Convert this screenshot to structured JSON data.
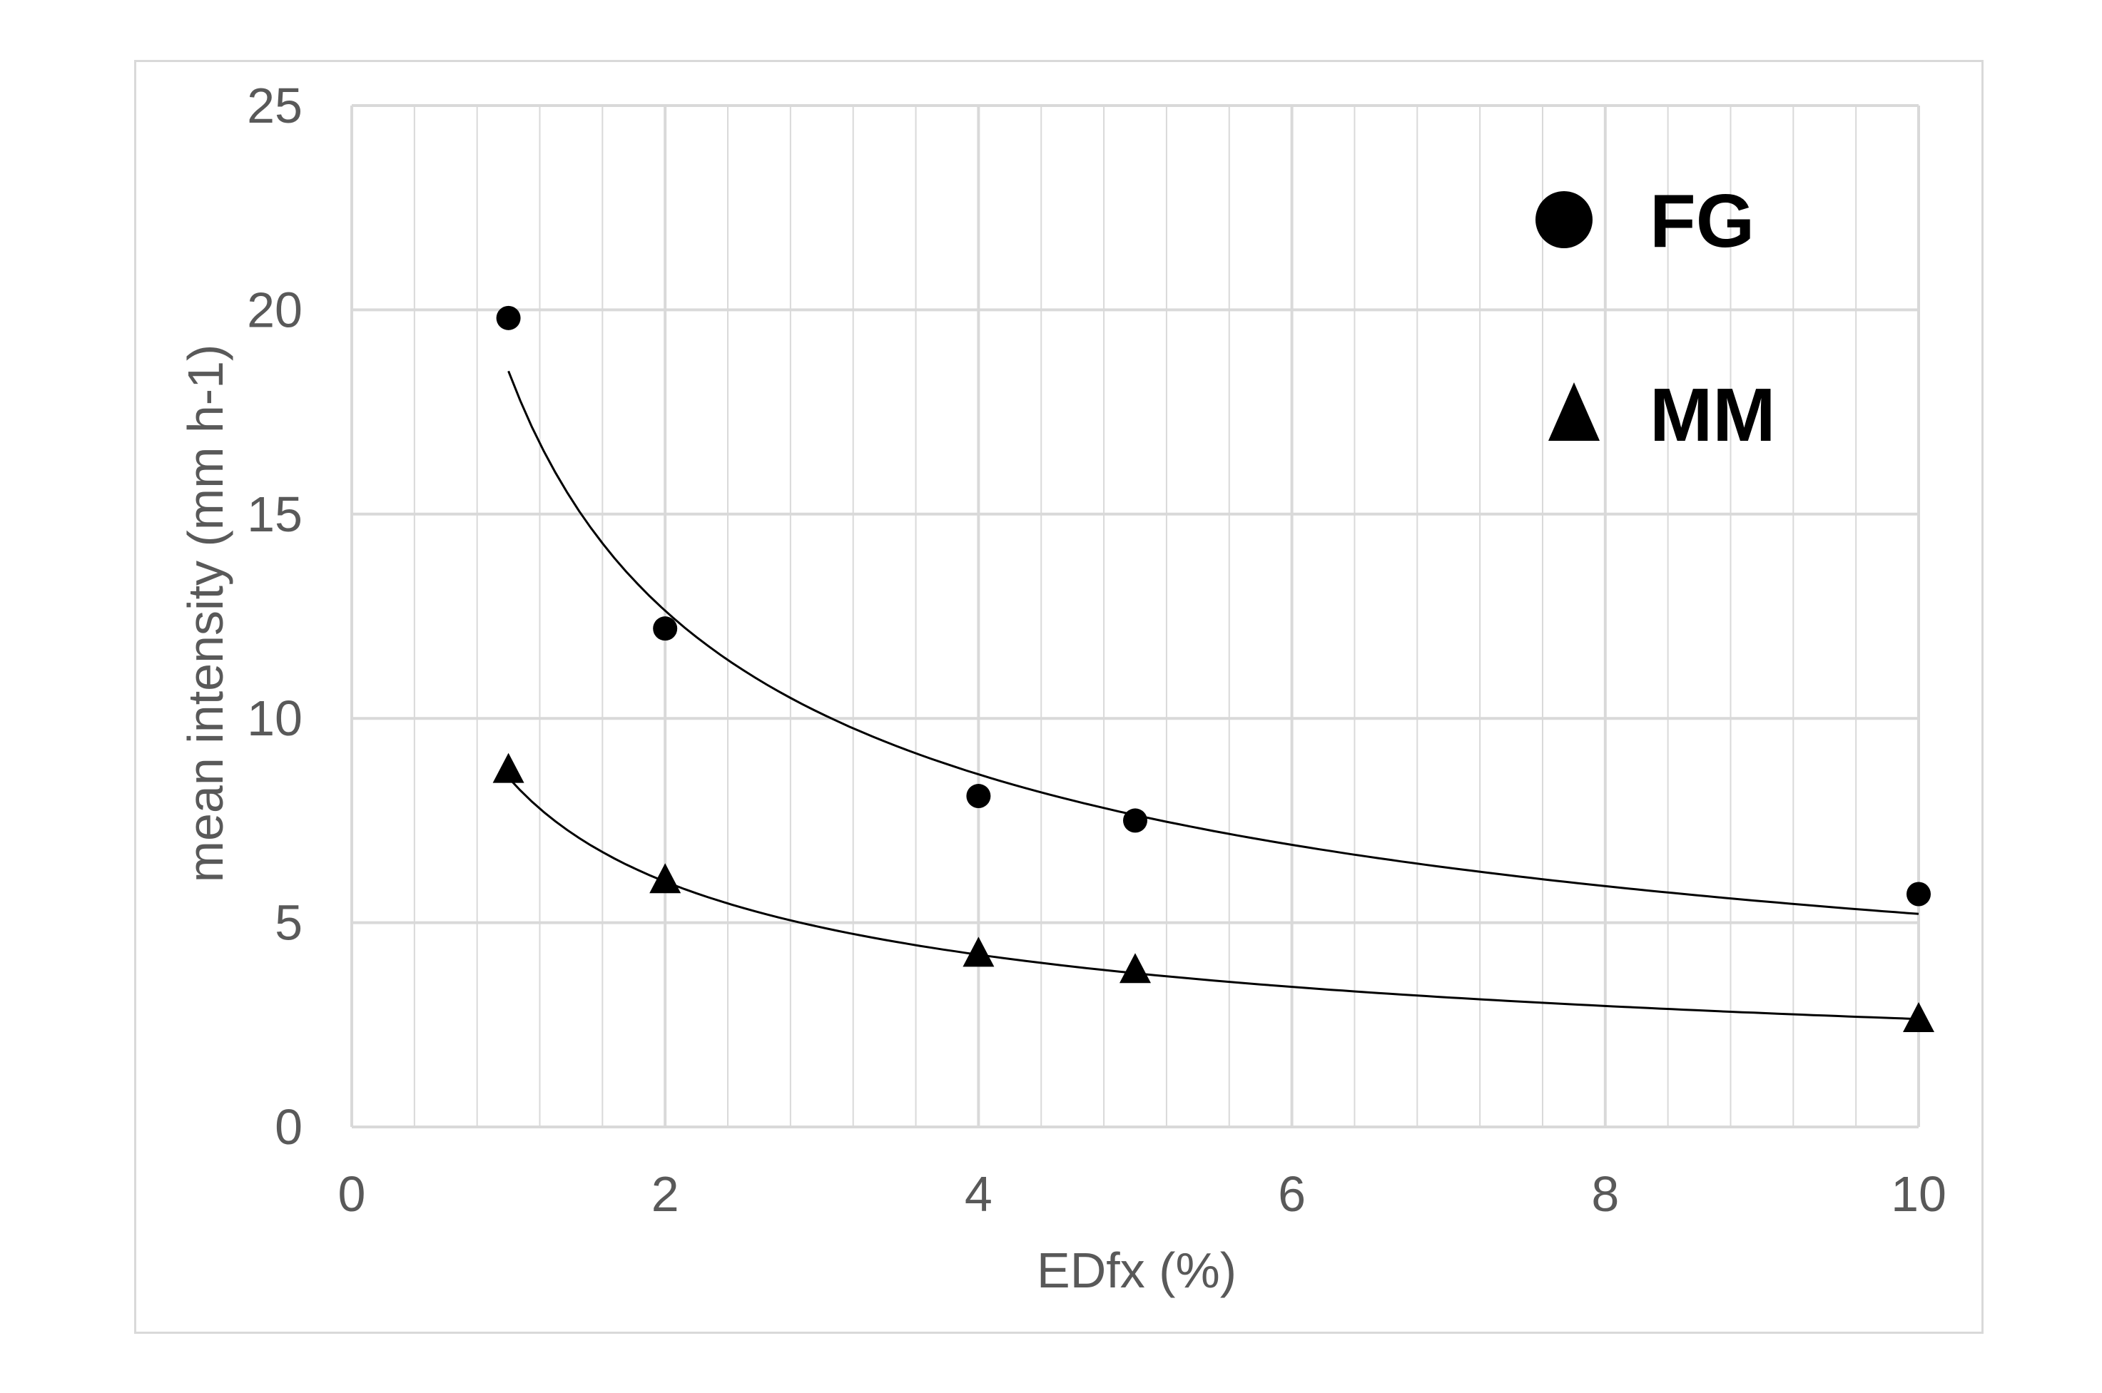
{
  "chart_data": {
    "type": "scatter",
    "title": "",
    "xlabel": "EDfx (%)",
    "ylabel": "mean intensity (mm h-1)",
    "xlim": [
      0,
      10
    ],
    "ylim": [
      0,
      25
    ],
    "x_ticks": [
      "0",
      "2",
      "4",
      "6",
      "8",
      "10"
    ],
    "y_ticks": [
      "0",
      "5",
      "10",
      "15",
      "20",
      "25"
    ],
    "grid": true,
    "legend_position": "top-right",
    "series": [
      {
        "name": "FG",
        "marker": "circle",
        "x": [
          1,
          2,
          4,
          5,
          10
        ],
        "y": [
          19.8,
          12.2,
          8.1,
          7.5,
          5.7
        ],
        "trendline": {
          "type": "power",
          "a": 18.5,
          "b": -0.55,
          "x_range": [
            1,
            10
          ]
        }
      },
      {
        "name": "MM",
        "marker": "triangle",
        "x": [
          1,
          2,
          4,
          5,
          10
        ],
        "y": [
          8.7,
          6.0,
          4.2,
          3.8,
          2.6
        ],
        "trendline": {
          "type": "power",
          "a": 8.55,
          "b": -0.51,
          "x_range": [
            1,
            10
          ]
        }
      }
    ],
    "colors": {
      "marker": "#000000",
      "grid": "#d9d9d9",
      "text": "#595959",
      "frame": "#d9d9d9"
    }
  }
}
